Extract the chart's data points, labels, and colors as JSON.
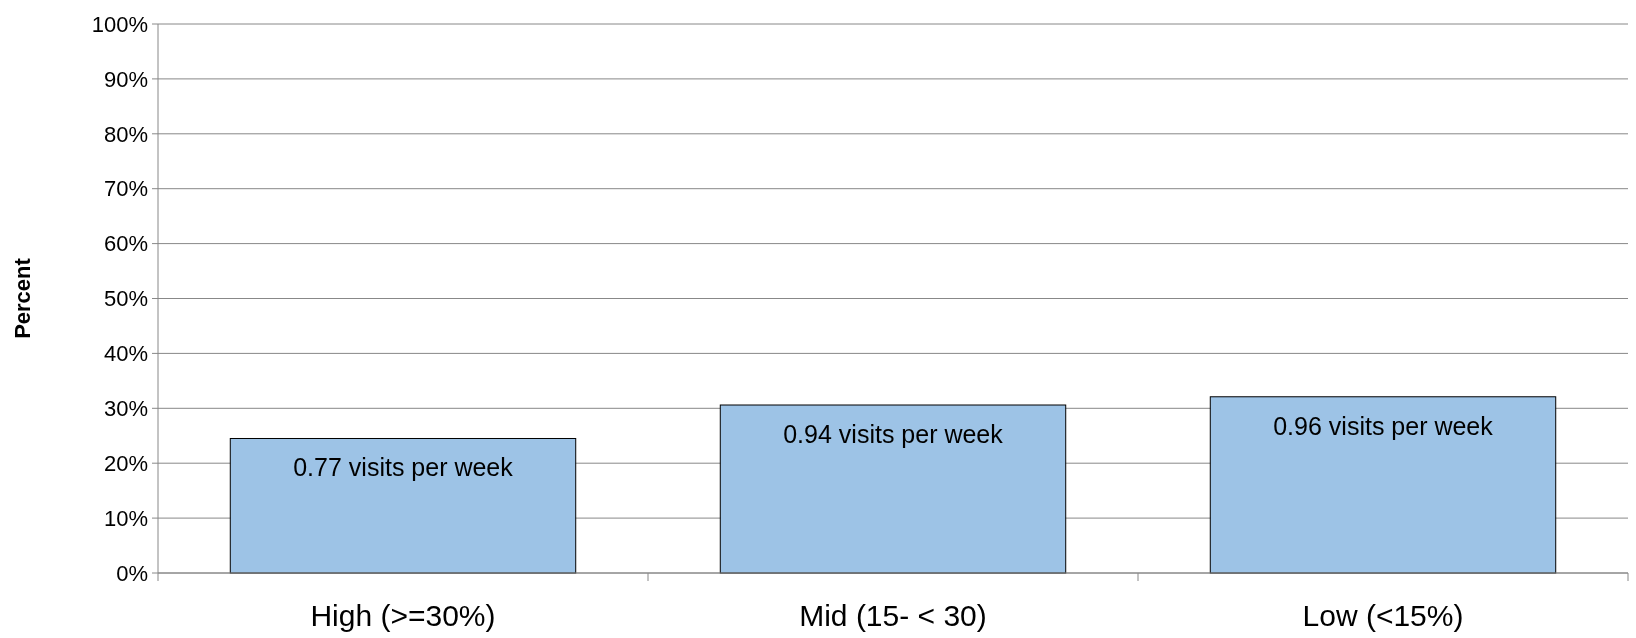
{
  "chart_data": {
    "type": "bar",
    "ylabel": "Percent",
    "categories": [
      "High (>=30%)",
      "Mid (15- < 30)",
      "Low  (<15%)"
    ],
    "values": [
      24.5,
      30.6,
      32.1
    ],
    "color": "#9dc3e6",
    "ylim": [
      0,
      100
    ],
    "yticks": [
      {
        "value": 0,
        "label": "0%"
      },
      {
        "value": 10,
        "label": "10%"
      },
      {
        "value": 20,
        "label": "20%"
      },
      {
        "value": 30,
        "label": "30%"
      },
      {
        "value": 40,
        "label": "40%"
      },
      {
        "value": 50,
        "label": "50%"
      },
      {
        "value": 60,
        "label": "60%"
      },
      {
        "value": 70,
        "label": "70%"
      },
      {
        "value": 80,
        "label": "80%"
      },
      {
        "value": 90,
        "label": "90%"
      },
      {
        "value": 100,
        "label": "100%"
      }
    ],
    "grid": "y",
    "annotations": [
      {
        "text": "0.77 visits per week",
        "x": "High (>=30%)",
        "y": 24.5
      },
      {
        "text": "0.94 visits per week",
        "x": "Mid (15- < 30)",
        "y": 30.6
      },
      {
        "text": "0.96 visits per week",
        "x": "Low  (<15%)",
        "y": 32.1
      }
    ]
  }
}
